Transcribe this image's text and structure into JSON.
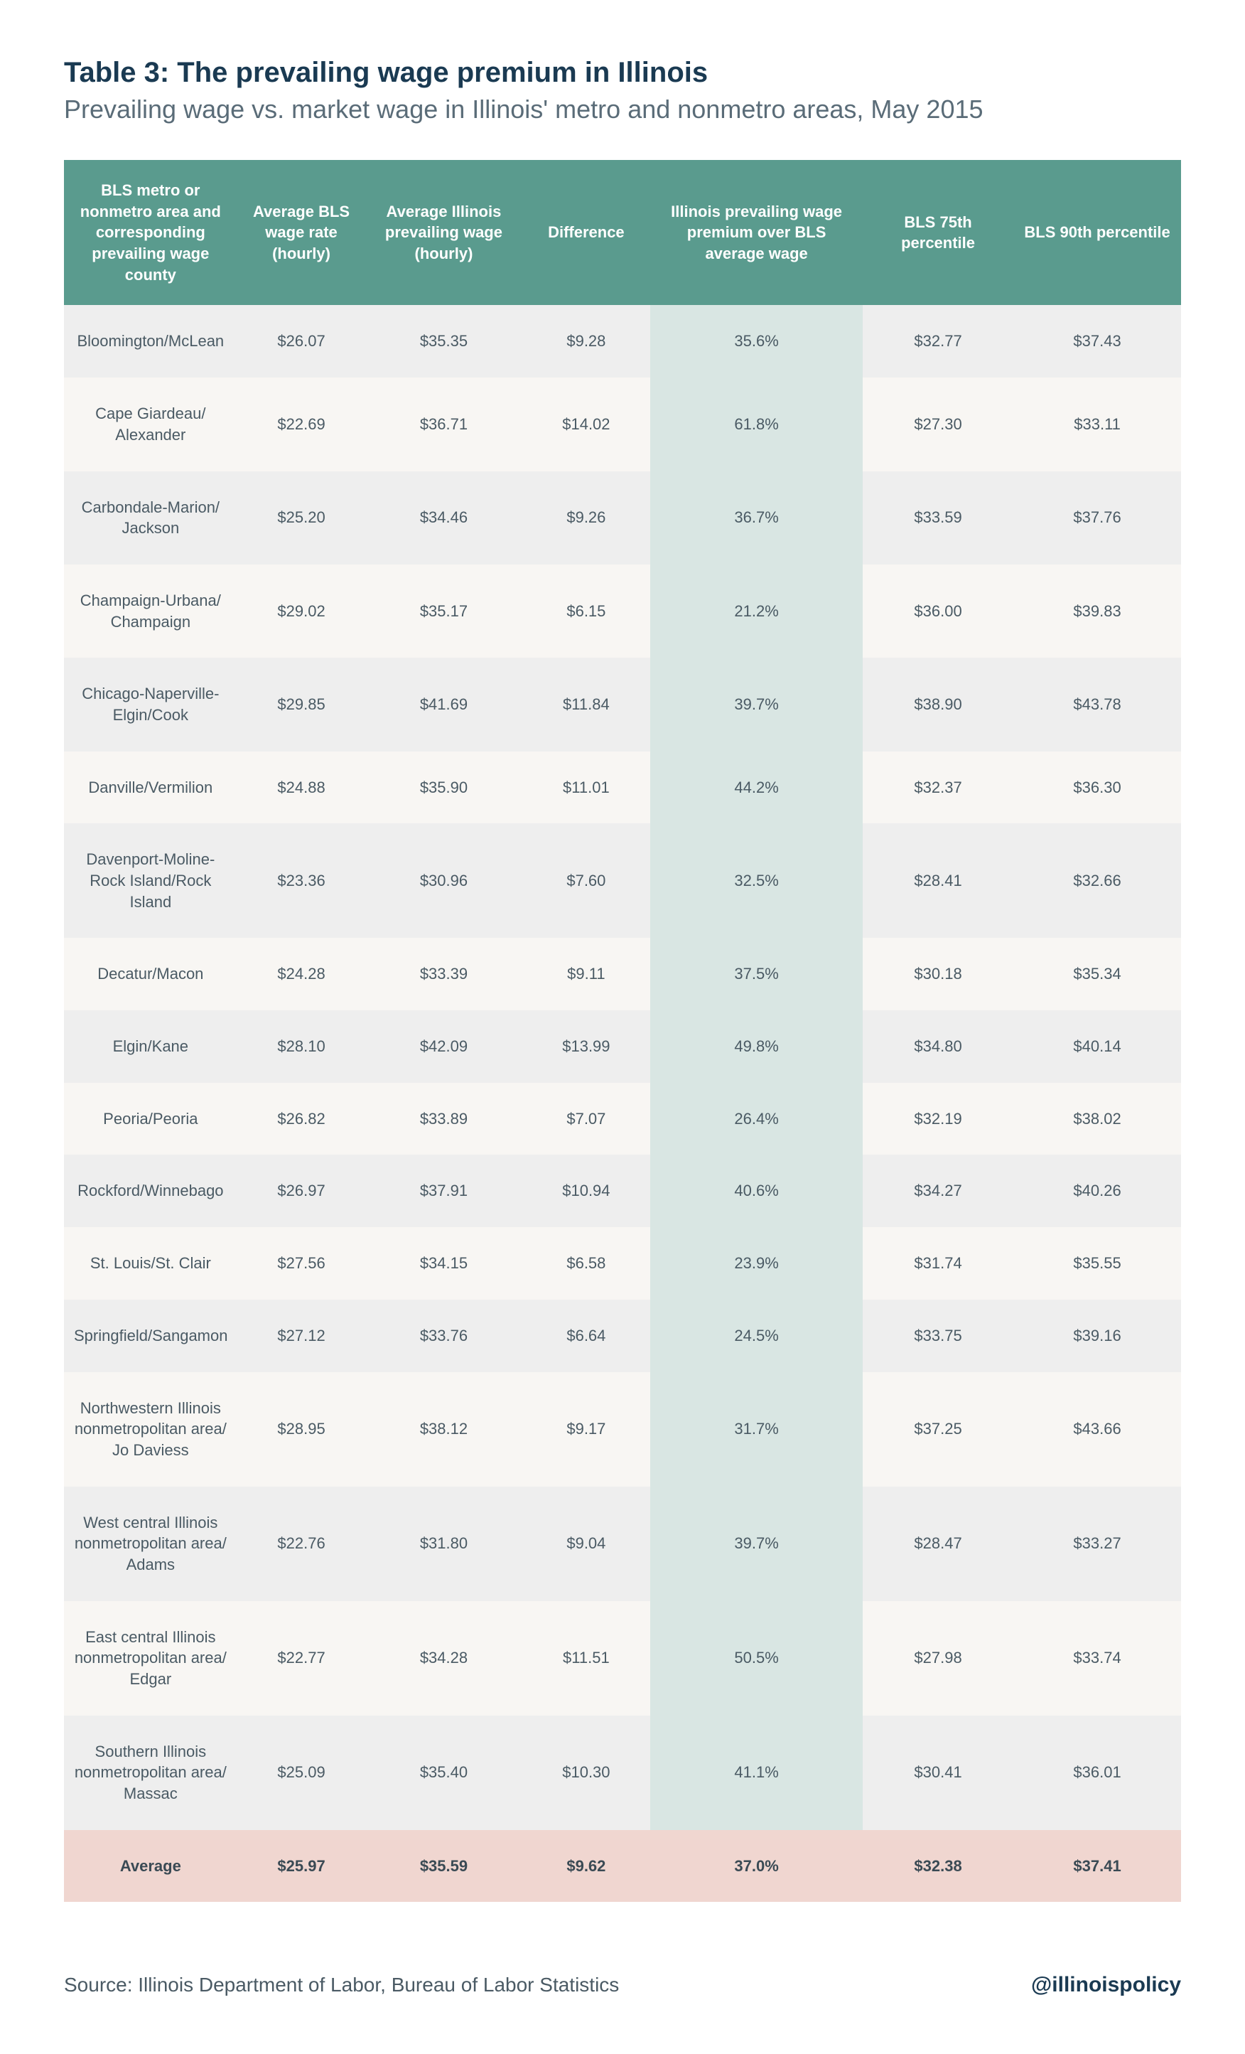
{
  "title": "Table 3: The prevailing wage premium in Illinois",
  "subtitle": "Prevailing wage vs. market wage in Illinois' metro and nonmetro areas, May 2015",
  "source": "Source:  Illinois Department of Labor, Bureau of Labor Statistics",
  "handle": "@illinoispolicy",
  "table": {
    "type": "table",
    "header_bg": "#5a9b8e",
    "header_text_color": "#ffffff",
    "row_odd_bg": "#eeeeee",
    "row_even_bg": "#f8f6f3",
    "highlight_col_bg": "#d9e6e3",
    "average_row_bg": "#f0d6d0",
    "text_color": "#4a5a64",
    "title_color": "#1a3a52",
    "subtitle_color": "#5a6c78",
    "font_size_header": 22,
    "font_size_body": 22,
    "font_size_title": 40,
    "font_size_subtitle": 36,
    "highlight_column_index": 4,
    "columns": [
      "BLS metro or nonmetro area and corresponding prevailing wage county",
      "Average BLS wage rate (hourly)",
      "Average Illinois prevailing wage (hourly)",
      "Difference",
      "Illinois prevailing wage premium over BLS average wage",
      "BLS 75th percentile",
      "BLS 90th percentile"
    ],
    "rows": [
      [
        "Bloomington/McLean",
        "$26.07",
        "$35.35",
        "$9.28",
        "35.6%",
        "$32.77",
        "$37.43"
      ],
      [
        "Cape Giardeau/\nAlexander",
        "$22.69",
        "$36.71",
        "$14.02",
        "61.8%",
        "$27.30",
        "$33.11"
      ],
      [
        "Carbondale-Marion/\nJackson",
        "$25.20",
        "$34.46",
        "$9.26",
        "36.7%",
        "$33.59",
        "$37.76"
      ],
      [
        "Champaign-Urbana/\nChampaign",
        "$29.02",
        "$35.17",
        "$6.15",
        "21.2%",
        "$36.00",
        "$39.83"
      ],
      [
        "Chicago-Naperville-Elgin/Cook",
        "$29.85",
        "$41.69",
        "$11.84",
        "39.7%",
        "$38.90",
        "$43.78"
      ],
      [
        "Danville/Vermilion",
        "$24.88",
        "$35.90",
        "$11.01",
        "44.2%",
        "$32.37",
        "$36.30"
      ],
      [
        "Davenport-Moline-Rock Island/Rock Island",
        "$23.36",
        "$30.96",
        "$7.60",
        "32.5%",
        "$28.41",
        "$32.66"
      ],
      [
        "Decatur/Macon",
        "$24.28",
        "$33.39",
        "$9.11",
        "37.5%",
        "$30.18",
        "$35.34"
      ],
      [
        "Elgin/Kane",
        "$28.10",
        "$42.09",
        "$13.99",
        "49.8%",
        "$34.80",
        "$40.14"
      ],
      [
        "Peoria/Peoria",
        "$26.82",
        "$33.89",
        "$7.07",
        "26.4%",
        "$32.19",
        "$38.02"
      ],
      [
        "Rockford/Winnebago",
        "$26.97",
        "$37.91",
        "$10.94",
        "40.6%",
        "$34.27",
        "$40.26"
      ],
      [
        "St. Louis/St. Clair",
        "$27.56",
        "$34.15",
        "$6.58",
        "23.9%",
        "$31.74",
        "$35.55"
      ],
      [
        "Springfield/Sangamon",
        "$27.12",
        "$33.76",
        "$6.64",
        "24.5%",
        "$33.75",
        "$39.16"
      ],
      [
        "Northwestern Illinois nonmetropolitan area/\nJo Daviess",
        "$28.95",
        "$38.12",
        "$9.17",
        "31.7%",
        "$37.25",
        "$43.66"
      ],
      [
        "West central Illinois nonmetropolitan area/\nAdams",
        "$22.76",
        "$31.80",
        "$9.04",
        "39.7%",
        "$28.47",
        "$33.27"
      ],
      [
        "East central Illinois nonmetropolitan area/\nEdgar",
        "$22.77",
        "$34.28",
        "$11.51",
        "50.5%",
        "$27.98",
        "$33.74"
      ],
      [
        "Southern Illinois nonmetropolitan area/\nMassac",
        "$25.09",
        "$35.40",
        "$10.30",
        "41.1%",
        "$30.41",
        "$36.01"
      ]
    ],
    "average_row": [
      "Average",
      "$25.97",
      "$35.59",
      "$9.62",
      "37.0%",
      "$32.38",
      "$37.41"
    ]
  }
}
